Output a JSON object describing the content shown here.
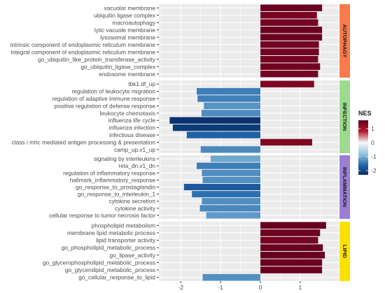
{
  "chart_data": {
    "type": "bar",
    "orientation": "horizontal",
    "x_ticks": [
      -2,
      -1,
      0,
      1
    ],
    "xlim": [
      -2.55,
      1.97
    ],
    "grid": true,
    "legend_position": "right",
    "legend": {
      "title": "NES",
      "ticks": [
        1,
        0,
        -1,
        -2
      ],
      "range": [
        -2.3,
        1.6
      ],
      "colors": {
        "low": "#08306b",
        "mid": "#f7f7f7",
        "high": "#67001f"
      }
    },
    "panels": [
      {
        "name": "AUTOPHAGY",
        "strip_color": "#f97a4c",
        "bars": [
          {
            "label": "vacuolar membrane",
            "value": 1.55
          },
          {
            "label": "ubiquitin ligase complex",
            "value": 1.42
          },
          {
            "label": "macroautophagy",
            "value": 1.45
          },
          {
            "label": "lytic vacuole membrane",
            "value": 1.55
          },
          {
            "label": "lysosomal membrane",
            "value": 1.55
          },
          {
            "label": "intrinsic component of endoplasmic reticulum membrane",
            "value": 1.47
          },
          {
            "label": "integral component of endoplasmic reticulum membrane",
            "value": 1.47
          },
          {
            "label": "go_ubiquitin_like_protein_transferase_activity",
            "value": 1.45
          },
          {
            "label": "go_ubiquitin_ligase_complex",
            "value": 1.5
          },
          {
            "label": "endosome membrane",
            "value": 1.45
          }
        ]
      },
      {
        "name": "INFECTION",
        "strip_color": "#9bdc8f",
        "bars": [
          {
            "label": "tbk1.df_up",
            "value": 1.35
          },
          {
            "label": "regulation of leukocyte migration",
            "value": -1.6
          },
          {
            "label": "regulation of adaptive immune response",
            "value": -1.58
          },
          {
            "label": "positive regulation of defense response",
            "value": -1.42
          },
          {
            "label": "leukocyte chemotaxis",
            "value": -1.48
          },
          {
            "label": "influenza life cycle",
            "value": -2.28
          },
          {
            "label": "influenza infection",
            "value": -2.2
          },
          {
            "label": "infectious disease",
            "value": -1.85
          },
          {
            "label": "class i mhc mediated antigen processing & presentation",
            "value": 1.3
          },
          {
            "label": "camp_up.v1_up",
            "value": -1.5
          }
        ]
      },
      {
        "name": "INFLAMMATION",
        "strip_color": "#9b7fd4",
        "bars": [
          {
            "label": "signaling by interleukins",
            "value": -1.25
          },
          {
            "label": "rela_dn.v1_dn",
            "value": -1.6
          },
          {
            "label": "regulation of inflammatory response",
            "value": -1.47
          },
          {
            "label": "hallmark_inflammatory_response",
            "value": -1.45
          },
          {
            "label": "go_response_to_prostaglandin",
            "value": -1.92
          },
          {
            "label": "go_response_to_interleukin_1",
            "value": -1.72
          },
          {
            "label": "cytokine secretion",
            "value": -1.47
          },
          {
            "label": "cytokine activity",
            "value": -1.52
          },
          {
            "label": "cellular response to tumor necrosis factor",
            "value": -1.36
          }
        ]
      },
      {
        "name": "LIPID",
        "strip_color": "#ffe100",
        "bars": [
          {
            "label": "phospholipid metabolism",
            "value": 1.65
          },
          {
            "label": "membrane lipid metabolic process",
            "value": 1.5
          },
          {
            "label": "lipid transporter activity",
            "value": 1.45
          },
          {
            "label": "go_phospholipid_metabolic_process",
            "value": 1.57
          },
          {
            "label": "go_lipase_activity",
            "value": 1.62
          },
          {
            "label": "go_glycerophospholipid_metabolic_process",
            "value": 1.55
          },
          {
            "label": "go_glycerolipid_metabolic_process",
            "value": 1.55
          },
          {
            "label": "go_cellular_response_to_lipid",
            "value": -1.45
          }
        ]
      }
    ]
  }
}
